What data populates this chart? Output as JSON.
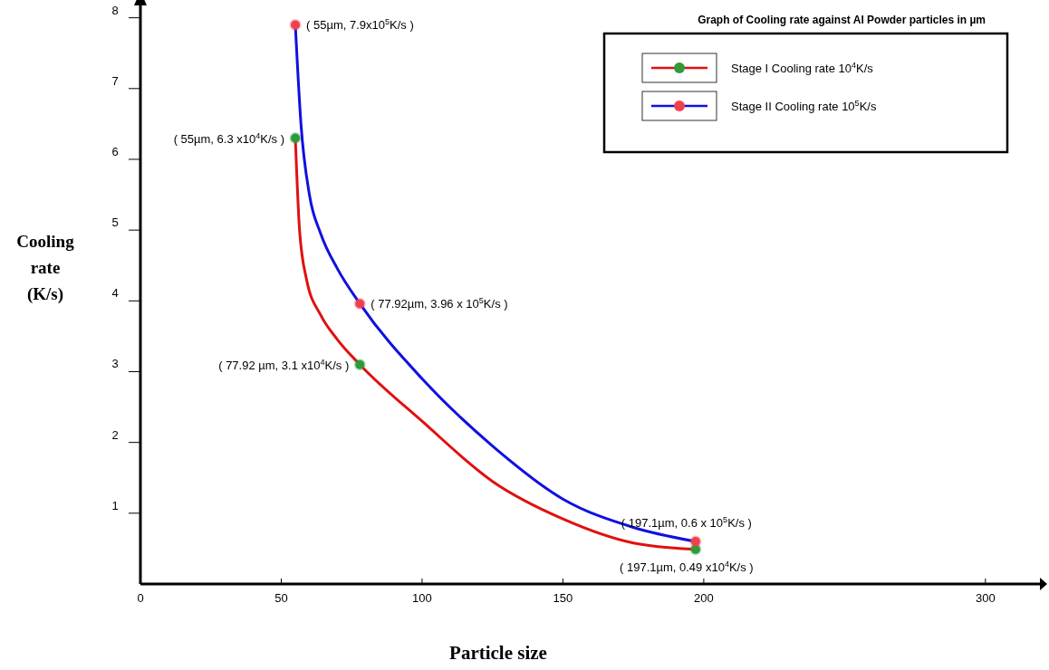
{
  "chart_data": {
    "type": "line",
    "title": "Graph of Cooling rate against Al Powder particles in µm",
    "xlabel": "Particle size",
    "ylabel": "Cooling rate (K/s)",
    "xlim": [
      0,
      320
    ],
    "xticks": [
      0,
      50,
      100,
      150,
      200,
      300
    ],
    "ylim": [
      0,
      8.2
    ],
    "yticks": [
      1,
      2,
      3,
      4,
      5,
      6,
      7,
      8
    ],
    "legend": "top right",
    "marker": "circle",
    "grid": false,
    "series": [
      {
        "name": "Stage I Cooling rate  10$^{4}$K/s",
        "color": "#e01010",
        "marker": "none",
        "x": [
          55,
          56.5,
          59,
          64,
          70,
          77.92,
          100,
          125,
          150,
          175,
          197.1
        ],
        "values": [
          6.3,
          5,
          4.3,
          3.8,
          3.45,
          3.1,
          2.3,
          1.45,
          0.92,
          0.58,
          0.49
        ]
      },
      {
        "name": "Stage II Cooling rate  10$^{5}$K/s",
        "color": "#1010e0",
        "marker": "none",
        "x": [
          55,
          57,
          60,
          64,
          70,
          77.92,
          100,
          125,
          150,
          175,
          197.1
        ],
        "values": [
          7.9,
          6.5,
          5.5,
          4.95,
          4.45,
          3.96,
          2.9,
          1.95,
          1.2,
          0.8,
          0.6
        ]
      },
      {
        "type": "scatter",
        "color": "#2e9a3a",
        "x": [
          55,
          77.92,
          197.1
        ],
        "values": [
          6.3,
          3.1,
          0.49
        ]
      },
      {
        "type": "scatter",
        "color": "#f04050",
        "x": [
          55,
          77.92,
          197.1
        ],
        "values": [
          7.9,
          3.96,
          0.6
        ]
      }
    ],
    "annotations": [
      {
        "text": "( 55µm, 7.9x10$^{5}$K/s )",
        "x": 55,
        "y": 7.9
      },
      {
        "text": "( 55µm, 6.3 x10$^{4}$K/s )",
        "x": 55,
        "y": 6.3
      },
      {
        "text": "( 77.92µm, 3.96 x 10$^{5}$K/s )",
        "x": 77.92,
        "y": 3.96
      },
      {
        "text": "( 77.92 µm, 3.1 x10$^{4}$K/s )",
        "x": 77.92,
        "y": 3.1
      },
      {
        "text": "( 197.1µm, 0.6 x 10$^{5}$K/s )",
        "x": 197.1,
        "y": 0.6
      },
      {
        "text": "( 197.1µm, 0.49 x10$^{4}$K/s )",
        "x": 197.1,
        "y": 0.49
      }
    ]
  }
}
